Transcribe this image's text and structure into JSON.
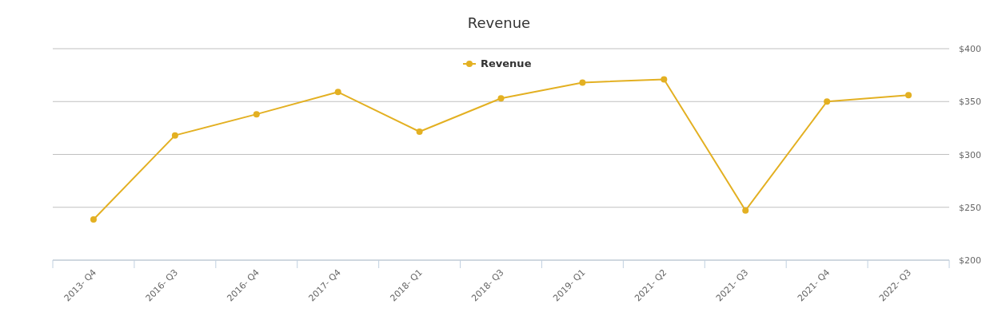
{
  "chart_data": {
    "type": "line",
    "title": "Revenue",
    "categories": [
      "2013- Q4",
      "2016- Q3",
      "2016- Q4",
      "2017- Q4",
      "2018- Q1",
      "2018- Q3",
      "2019- Q1",
      "2021- Q2",
      "2021- Q3",
      "2021- Q4",
      "2022- Q3"
    ],
    "series": [
      {
        "name": "Revenue",
        "color": "#e3b022",
        "values": [
          238.5,
          318,
          338,
          359,
          321.5,
          353,
          368,
          371,
          247,
          350,
          356
        ]
      }
    ],
    "ylim": [
      200,
      400
    ],
    "yticks": [
      {
        "value": 200,
        "label": "$200"
      },
      {
        "value": 250,
        "label": "$250"
      },
      {
        "value": 300,
        "label": "$300"
      },
      {
        "value": 350,
        "label": "$350"
      },
      {
        "value": 400,
        "label": "$400"
      }
    ],
    "grid": "y",
    "legend": "top",
    "marker": "circle",
    "line_style": "solid"
  }
}
